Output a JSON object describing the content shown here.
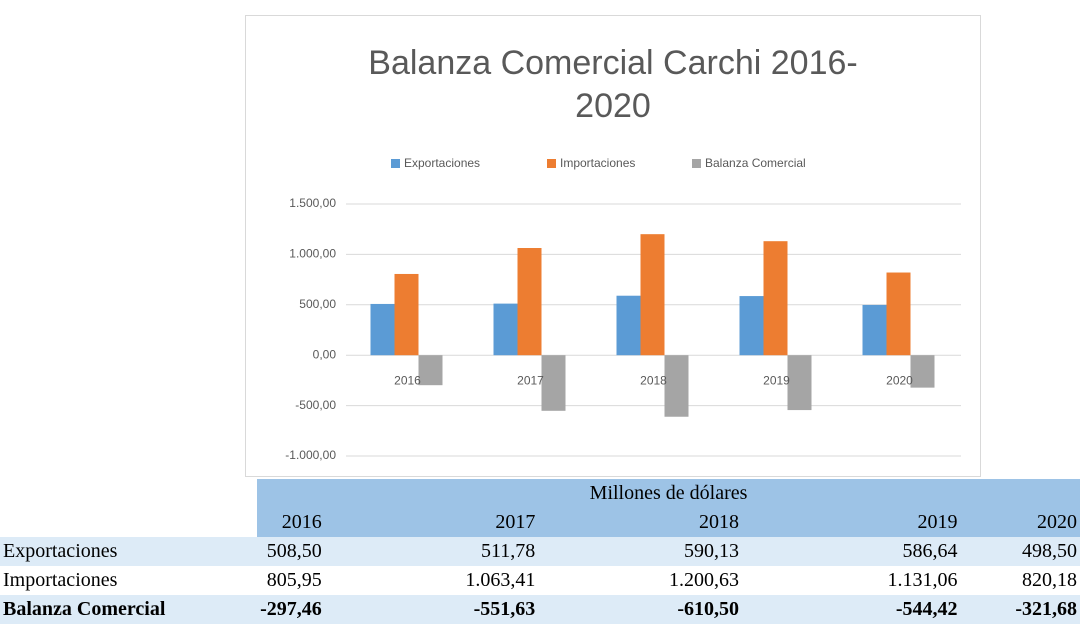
{
  "chart_data": {
    "type": "bar",
    "title": "Balanza Comercial Carchi 2016-2020",
    "categories": [
      "2016",
      "2017",
      "2018",
      "2019",
      "2020"
    ],
    "series": [
      {
        "name": "Exportaciones",
        "color": "#5b9bd5",
        "values": [
          508.5,
          511.78,
          590.13,
          586.64,
          498.5
        ]
      },
      {
        "name": "Importaciones",
        "color": "#ed7d31",
        "values": [
          805.95,
          1063.41,
          1200.63,
          1131.06,
          820.18
        ]
      },
      {
        "name": "Balanza Comercial",
        "color": "#a5a5a5",
        "values": [
          -297.46,
          -551.63,
          -610.5,
          -544.42,
          -321.68
        ]
      }
    ],
    "ylim": [
      -1000,
      1500
    ],
    "yticks": [
      {
        "value": -1000,
        "label": "-1.000,00"
      },
      {
        "value": -500,
        "label": "-500,00"
      },
      {
        "value": 0,
        "label": "0,00"
      },
      {
        "value": 500,
        "label": "500,00"
      },
      {
        "value": 1000,
        "label": "1.000,00"
      },
      {
        "value": 1500,
        "label": "1.500,00"
      }
    ],
    "grid": true,
    "legend": "top"
  },
  "table": {
    "caption": "Millones de dólares",
    "columns": [
      "2016",
      "2017",
      "2018",
      "2019",
      "2020"
    ],
    "rows": [
      {
        "label": "Exportaciones",
        "cells": [
          "508,50",
          "511,78",
          "590,13",
          "586,64",
          "498,50"
        ]
      },
      {
        "label": "Importaciones",
        "cells": [
          "805,95",
          "1.063,41",
          "1.200,63",
          "1.131,06",
          "820,18"
        ]
      },
      {
        "label": "Balanza Comercial",
        "cells": [
          "-297,46",
          "-551,63",
          "-610,50",
          "-544,42",
          "-321,68"
        ]
      }
    ]
  }
}
